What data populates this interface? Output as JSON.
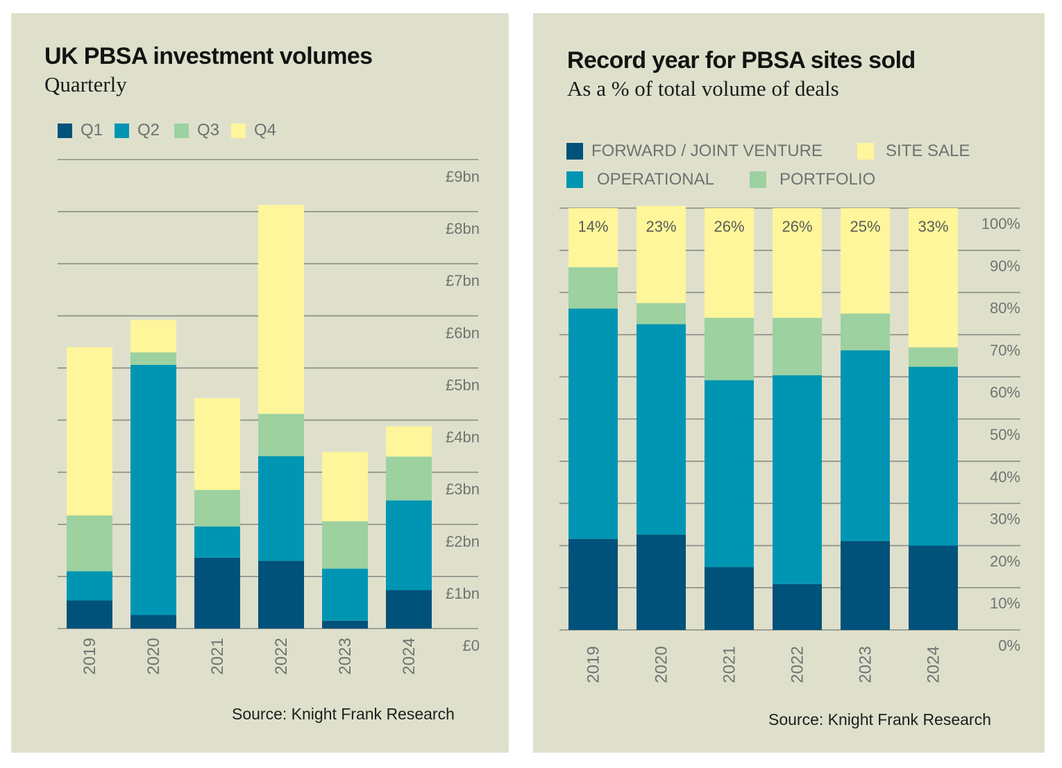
{
  "colors": {
    "background": "#dfe0cc",
    "gridline": "#8a8c84",
    "q1": "#00527a",
    "q2": "#0096b3",
    "q3": "#9dd1a0",
    "q4": "#fff59a"
  },
  "chart_data": [
    {
      "type": "bar",
      "stacked": true,
      "title": "UK PBSA investment volumes",
      "subtitle": "Quarterly",
      "xlabel": "",
      "ylabel": "",
      "categories": [
        "2019",
        "2020",
        "2021",
        "2022",
        "2023",
        "2024"
      ],
      "series": [
        {
          "name": "Q1",
          "color": "#00527a",
          "values": [
            0.54,
            0.26,
            1.36,
            1.3,
            0.15,
            0.74
          ]
        },
        {
          "name": "Q2",
          "color": "#0096b3",
          "values": [
            0.56,
            4.8,
            0.6,
            2.01,
            1.0,
            1.72
          ]
        },
        {
          "name": "Q3",
          "color": "#9dd1a0",
          "values": [
            1.07,
            0.24,
            0.7,
            0.81,
            0.91,
            0.84
          ]
        },
        {
          "name": "Q4",
          "color": "#fff59a",
          "values": [
            3.23,
            0.62,
            1.76,
            4.01,
            1.33,
            0.58
          ]
        }
      ],
      "units": "£bn",
      "ylim": [
        0,
        9
      ],
      "yticks": [
        "£0",
        "£1bn",
        "£2bn",
        "£3bn",
        "£4bn",
        "£5bn",
        "£6bn",
        "£7bn",
        "£8bn",
        "£9bn"
      ],
      "grid": true,
      "legend": "top-left",
      "source": "Source: Knight Frank Research"
    },
    {
      "type": "bar",
      "stacked": true,
      "title": "Record year for PBSA sites sold",
      "subtitle": "As a % of total volume of deals",
      "xlabel": "",
      "ylabel": "",
      "categories": [
        "2019",
        "2020",
        "2021",
        "2022",
        "2023",
        "2024"
      ],
      "series": [
        {
          "name": "FORWARD / JOINT VENTURE",
          "color": "#00527a",
          "values": [
            21.6,
            22.6,
            14.9,
            10.9,
            21.1,
            20.0
          ]
        },
        {
          "name": "OPERATIONAL",
          "color": "#0096b3",
          "values": [
            54.6,
            49.9,
            44.3,
            49.5,
            45.2,
            42.4
          ]
        },
        {
          "name": "PORTFOLIO",
          "color": "#9dd1a0",
          "values": [
            9.8,
            5.0,
            14.8,
            13.6,
            8.7,
            4.6
          ]
        },
        {
          "name": "SITE SALE",
          "color": "#fff59a",
          "values": [
            14,
            23,
            26,
            26,
            25,
            33
          ]
        }
      ],
      "data_labels": [
        "14%",
        "23%",
        "26%",
        "26%",
        "25%",
        "33%"
      ],
      "units": "%",
      "ylim": [
        0,
        100
      ],
      "yticks": [
        "0%",
        "10%",
        "20%",
        "30%",
        "40%",
        "50%",
        "60%",
        "70%",
        "80%",
        "90%",
        "100%"
      ],
      "grid": true,
      "legend": "top-left",
      "source": "Source: Knight Frank Research"
    }
  ],
  "left": {
    "title": "UK PBSA investment volumes",
    "subtitle": "Quarterly",
    "legend": [
      "Q1",
      "Q2",
      "Q3",
      "Q4"
    ],
    "source": "Source: Knight Frank Research"
  },
  "right": {
    "title": "Record year for PBSA sites sold",
    "subtitle": "As a % of total volume of deals",
    "legend": [
      "FORWARD / JOINT VENTURE",
      "SITE SALE",
      "OPERATIONAL",
      "PORTFOLIO"
    ],
    "source": "Source: Knight Frank Research"
  }
}
